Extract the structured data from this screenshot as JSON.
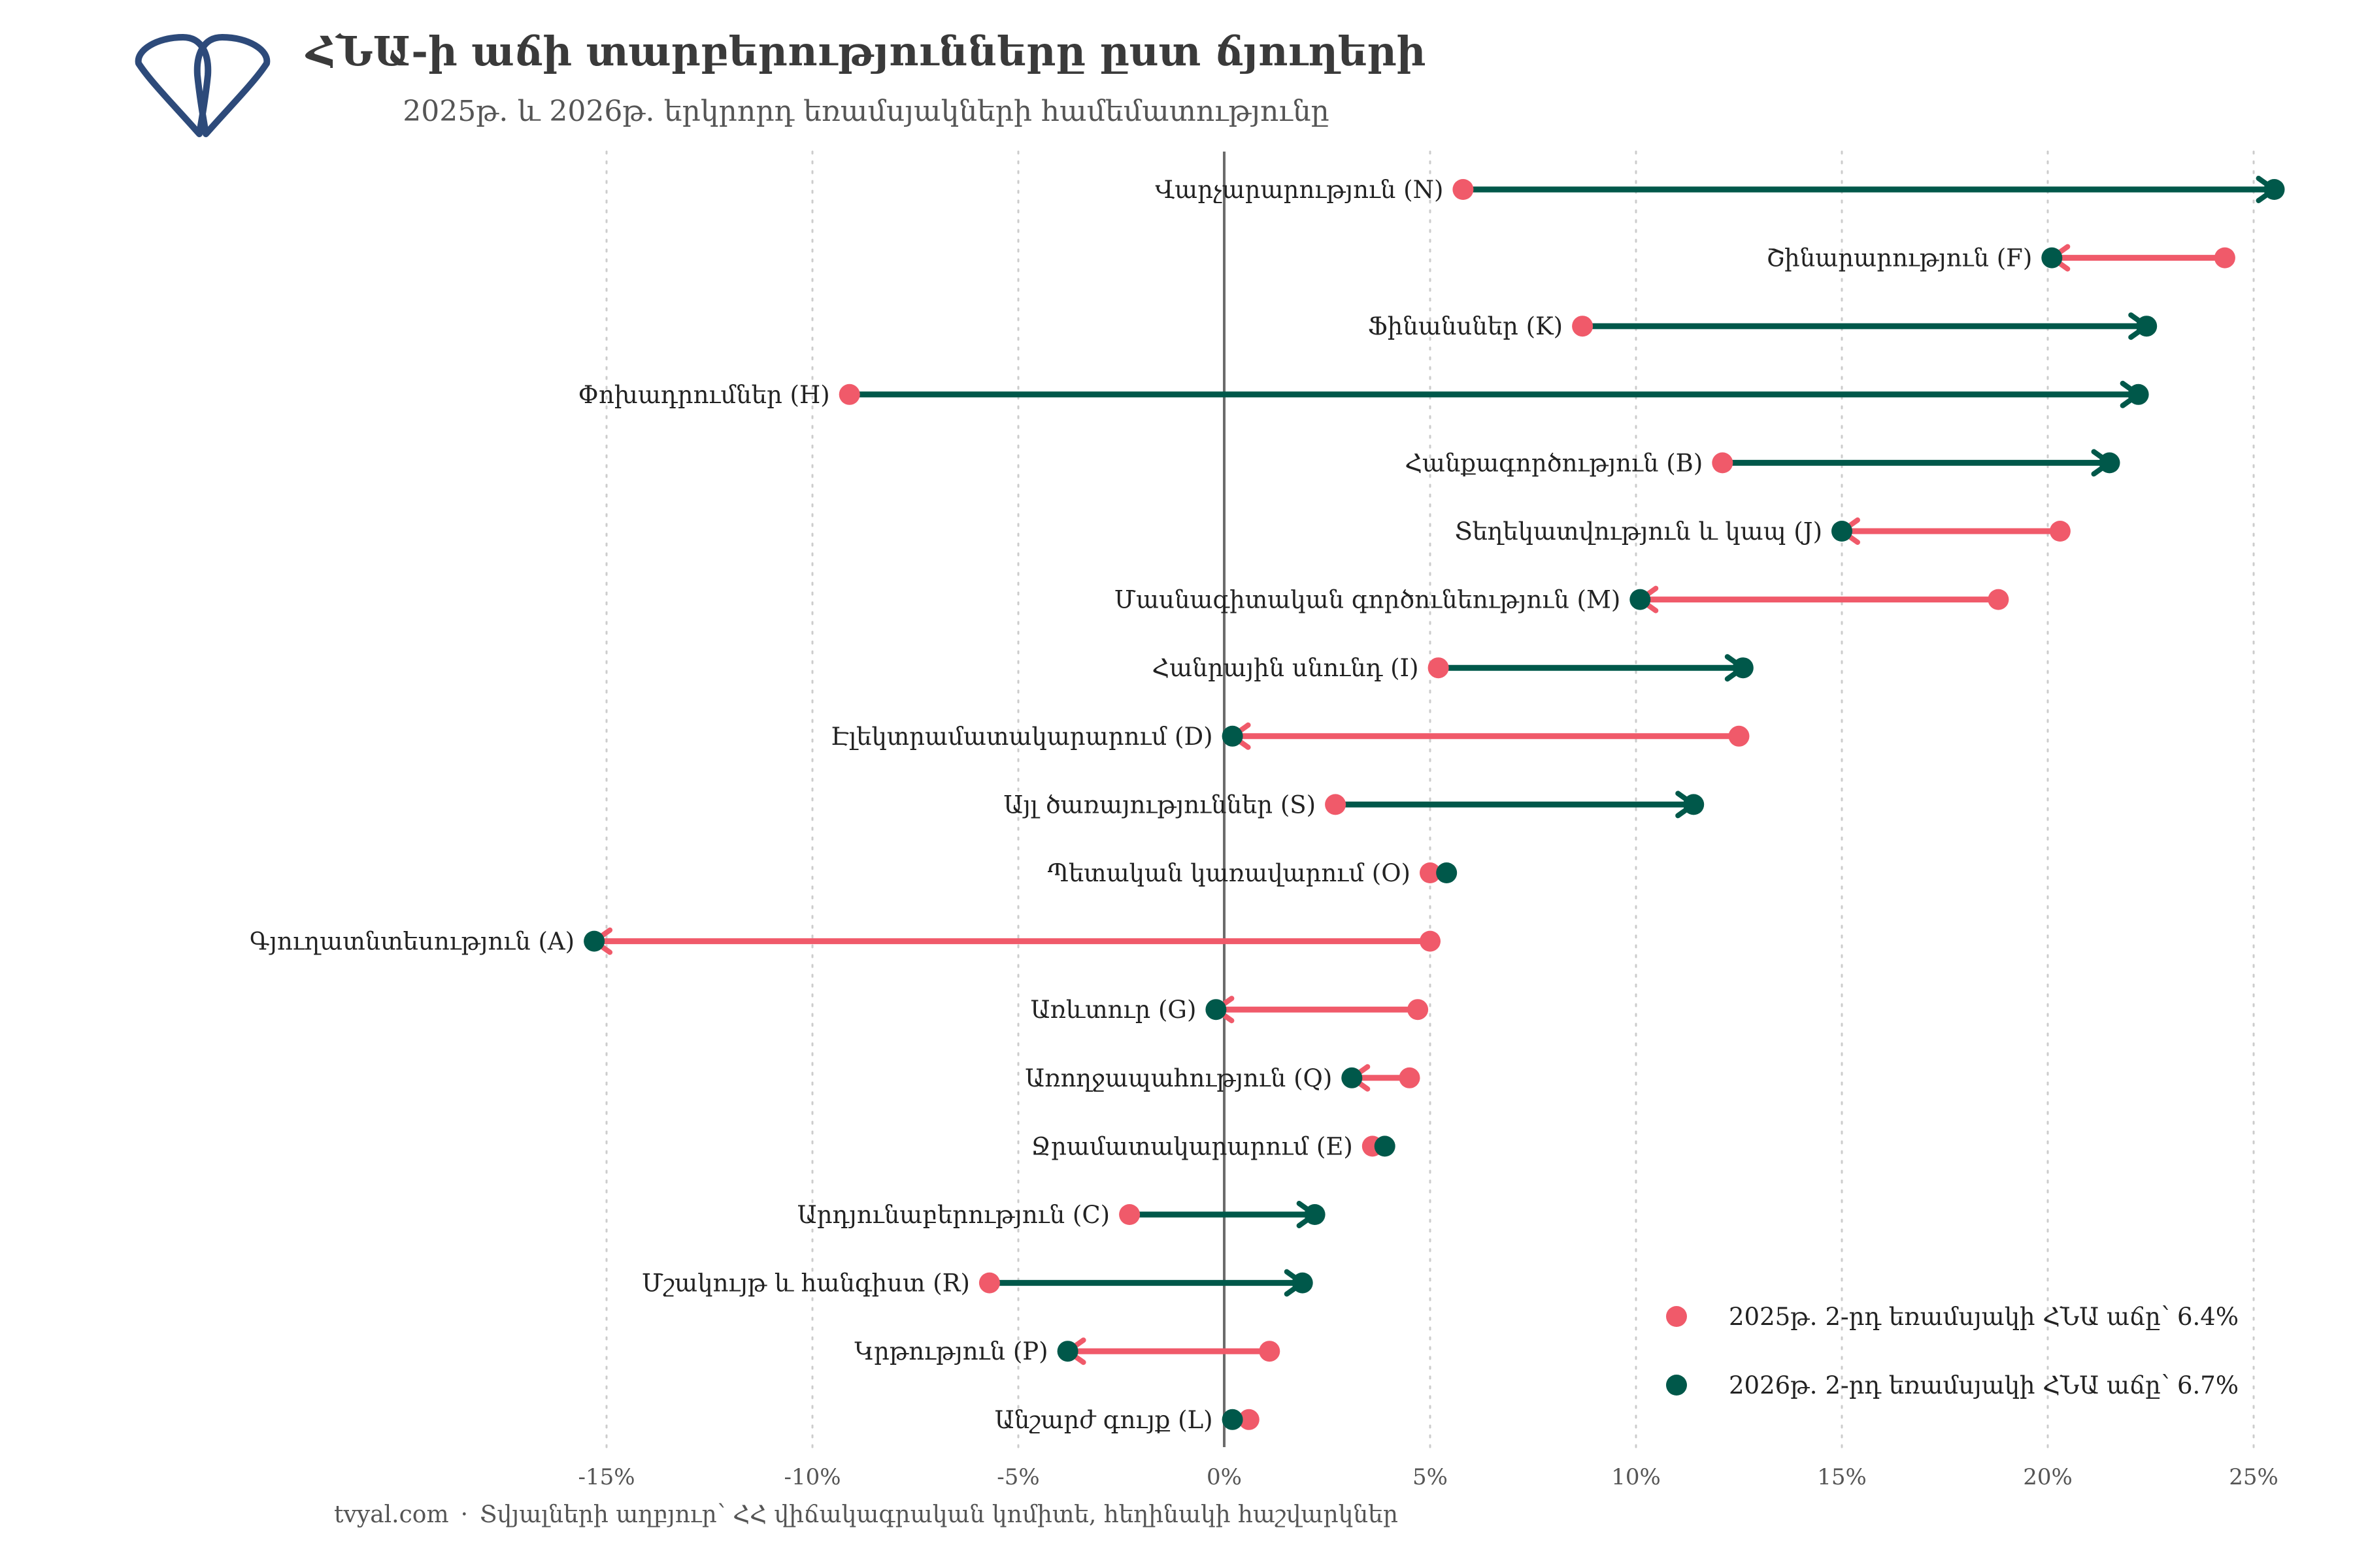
{
  "title": "ՀՆԱ-ի աճի տարբերությունները ըստ ճյուղերի",
  "subtitle": "2025թ․ և 2026թ․ երկրորդ եռամսյակների համեմատությունը",
  "source": {
    "site": "tvyal.com",
    "separator": "·",
    "text": "Տվյալների աղբյուր՝ ՀՀ վիճակագրական կոմիտե, հեղինակի հաշվարկներ"
  },
  "logo": {
    "icon": "tvyal-logo-icon",
    "color": "#2d4a7a"
  },
  "colors": {
    "y2025": "#f05a6a",
    "y2026": "#00584a",
    "grid": "#cccccc",
    "zero": "#6b6b6b"
  },
  "chart_data": {
    "type": "dumbbell",
    "title": "ՀՆԱ-ի աճի տարբերությունները ըստ ճյուղերի",
    "subtitle": "2025թ․ և 2026թ․ երկրորդ եռամսյակների համեմատությունը",
    "x_unit": "%",
    "xlim": [
      -15.5,
      25.5
    ],
    "x_ticks": [
      -15,
      -10,
      -5,
      0,
      5,
      10,
      15,
      20,
      25
    ],
    "x_tick_labels": [
      "-15%",
      "-10%",
      "-5%",
      "0%",
      "5%",
      "10%",
      "15%",
      "20%",
      "25%"
    ],
    "grid": "vertical dotted",
    "legend_position": "bottom-right",
    "legend": [
      {
        "label": "2025թ․ 2-րդ եռամսյակի ՀՆԱ աճը՝ 6.4%",
        "color": "#f05a6a"
      },
      {
        "label": "2026թ․ 2-րդ եռամսյակի ՀՆԱ աճը՝ 6.7%",
        "color": "#00584a"
      }
    ],
    "categories": [
      "Վարչարարություն (N)",
      "Շինարարություն (F)",
      "Ֆինանսներ (K)",
      "Փոխադրումներ (H)",
      "Հանքագործություն (B)",
      "Տեղեկատվություն և կապ (J)",
      "Մասնագիտական գործունեություն (M)",
      "Հանրային սնունդ (I)",
      "Էլեկտրամատակարարում (D)",
      "Այլ ծառայություններ (S)",
      "Պետական կառավարում (O)",
      "Գյուղատնտեսություն (A)",
      "Առևտուր (G)",
      "Առողջապահություն (Q)",
      "Ջրամատակարարում (E)",
      "Արդյունաբերություն (C)",
      "Մշակույթ և հանգիստ (R)",
      "Կրթություն (P)",
      "Անշարժ գույք (L)"
    ],
    "series": [
      {
        "name": "2025թ․ 2-րդ եռամսյակի ՀՆԱ աճը՝ 6.4%",
        "values": [
          5.8,
          24.3,
          8.7,
          -9.1,
          12.1,
          20.3,
          18.8,
          5.2,
          12.5,
          2.7,
          5.0,
          5.0,
          4.7,
          4.5,
          3.6,
          -2.3,
          -5.7,
          1.1,
          0.6
        ]
      },
      {
        "name": "2026թ․ 2-րդ եռամսյակի ՀՆԱ աճը՝ 6.7%",
        "values": [
          25.5,
          20.1,
          22.4,
          22.2,
          21.5,
          15.0,
          10.1,
          12.6,
          0.2,
          11.4,
          5.4,
          -15.3,
          -0.2,
          3.1,
          3.9,
          2.2,
          1.9,
          -3.8,
          0.2
        ]
      }
    ]
  }
}
